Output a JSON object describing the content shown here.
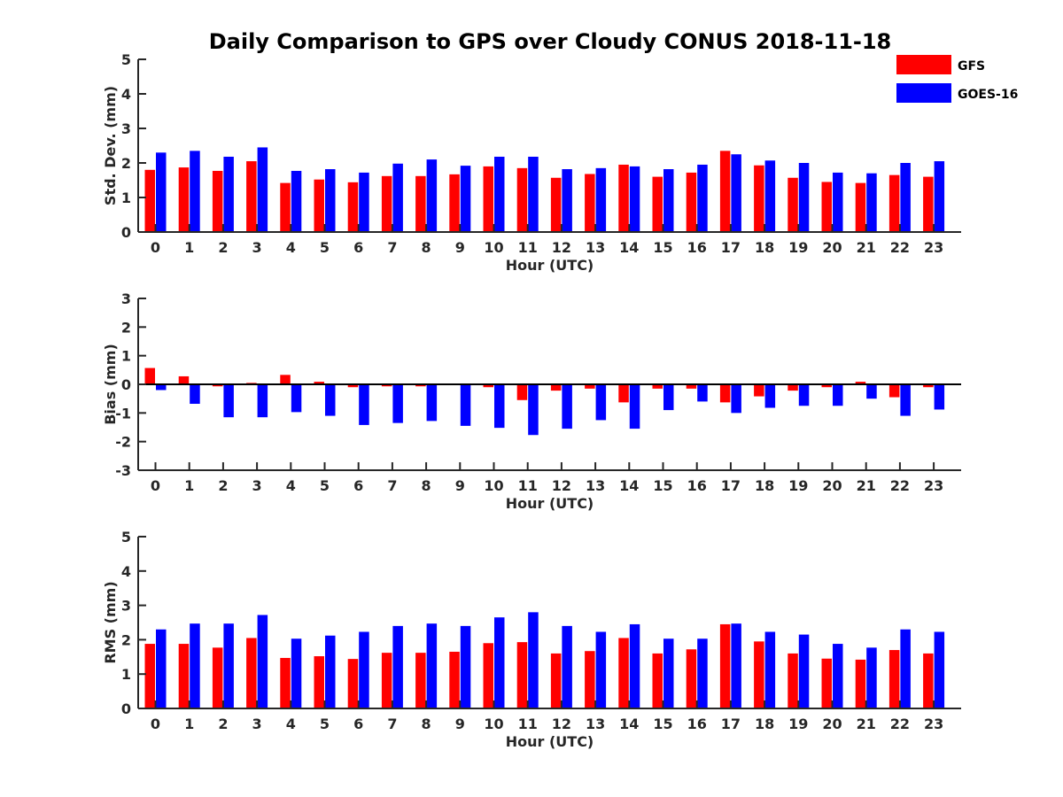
{
  "title": "Daily Comparison to GPS over Cloudy CONUS 2018-11-18",
  "legend": {
    "placement": "top-right",
    "entries": [
      {
        "label": "GFS",
        "color": "#ff0000"
      },
      {
        "label": "GOES-16",
        "color": "#0000ff"
      }
    ]
  },
  "chart_data": [
    {
      "type": "bar",
      "xlabel": "Hour (UTC)",
      "ylabel": "Std. Dev. (mm)",
      "ylim": [
        0,
        5
      ],
      "yticks": [
        0,
        1,
        2,
        3,
        4,
        5
      ],
      "categories": [
        "0",
        "1",
        "2",
        "3",
        "4",
        "5",
        "6",
        "7",
        "8",
        "9",
        "10",
        "11",
        "12",
        "13",
        "14",
        "15",
        "16",
        "17",
        "18",
        "19",
        "20",
        "21",
        "22",
        "23"
      ],
      "series": [
        {
          "name": "GFS",
          "color": "#ff0000",
          "values": [
            1.8,
            1.87,
            1.77,
            2.05,
            1.42,
            1.52,
            1.44,
            1.62,
            1.62,
            1.67,
            1.9,
            1.85,
            1.57,
            1.68,
            1.95,
            1.6,
            1.72,
            2.35,
            1.93,
            1.57,
            1.45,
            1.42,
            1.65,
            1.6
          ]
        },
        {
          "name": "GOES-16",
          "color": "#0000ff",
          "values": [
            2.3,
            2.35,
            2.18,
            2.45,
            1.77,
            1.82,
            1.72,
            1.98,
            2.1,
            1.92,
            2.18,
            2.18,
            1.82,
            1.85,
            1.9,
            1.82,
            1.95,
            2.25,
            2.07,
            2.0,
            1.72,
            1.7,
            2.0,
            2.05
          ]
        }
      ]
    },
    {
      "type": "bar",
      "xlabel": "Hour (UTC)",
      "ylabel": "Bias (mm)",
      "ylim": [
        -3,
        3
      ],
      "yticks": [
        -3,
        -2,
        -1,
        0,
        1,
        2,
        3
      ],
      "zero_line": true,
      "categories": [
        "0",
        "1",
        "2",
        "3",
        "4",
        "5",
        "6",
        "7",
        "8",
        "9",
        "10",
        "11",
        "12",
        "13",
        "14",
        "15",
        "16",
        "17",
        "18",
        "19",
        "20",
        "21",
        "22",
        "23"
      ],
      "series": [
        {
          "name": "GFS",
          "color": "#ff0000",
          "values": [
            0.57,
            0.28,
            -0.07,
            0.05,
            0.33,
            0.09,
            -0.1,
            -0.07,
            -0.07,
            -0.02,
            -0.1,
            -0.55,
            -0.22,
            -0.15,
            -0.63,
            -0.15,
            -0.15,
            -0.63,
            -0.42,
            -0.22,
            -0.1,
            0.09,
            -0.45,
            -0.1
          ]
        },
        {
          "name": "GOES-16",
          "color": "#0000ff",
          "values": [
            -0.2,
            -0.68,
            -1.15,
            -1.15,
            -0.97,
            -1.1,
            -1.42,
            -1.35,
            -1.28,
            -1.45,
            -1.52,
            -1.77,
            -1.55,
            -1.25,
            -1.55,
            -0.9,
            -0.6,
            -1.0,
            -0.82,
            -0.75,
            -0.75,
            -0.5,
            -1.1,
            -0.88
          ]
        }
      ]
    },
    {
      "type": "bar",
      "xlabel": "Hour (UTC)",
      "ylabel": "RMS (mm)",
      "ylim": [
        0,
        5
      ],
      "yticks": [
        0,
        1,
        2,
        3,
        4,
        5
      ],
      "categories": [
        "0",
        "1",
        "2",
        "3",
        "4",
        "5",
        "6",
        "7",
        "8",
        "9",
        "10",
        "11",
        "12",
        "13",
        "14",
        "15",
        "16",
        "17",
        "18",
        "19",
        "20",
        "21",
        "22",
        "23"
      ],
      "series": [
        {
          "name": "GFS",
          "color": "#ff0000",
          "values": [
            1.88,
            1.88,
            1.77,
            2.05,
            1.47,
            1.52,
            1.44,
            1.62,
            1.62,
            1.65,
            1.9,
            1.93,
            1.6,
            1.67,
            2.05,
            1.6,
            1.72,
            2.45,
            1.95,
            1.6,
            1.45,
            1.42,
            1.7,
            1.6
          ]
        },
        {
          "name": "GOES-16",
          "color": "#0000ff",
          "values": [
            2.3,
            2.47,
            2.47,
            2.72,
            2.03,
            2.12,
            2.23,
            2.4,
            2.47,
            2.4,
            2.65,
            2.8,
            2.4,
            2.23,
            2.45,
            2.03,
            2.03,
            2.47,
            2.23,
            2.15,
            1.88,
            1.77,
            2.3,
            2.23
          ]
        }
      ]
    }
  ]
}
